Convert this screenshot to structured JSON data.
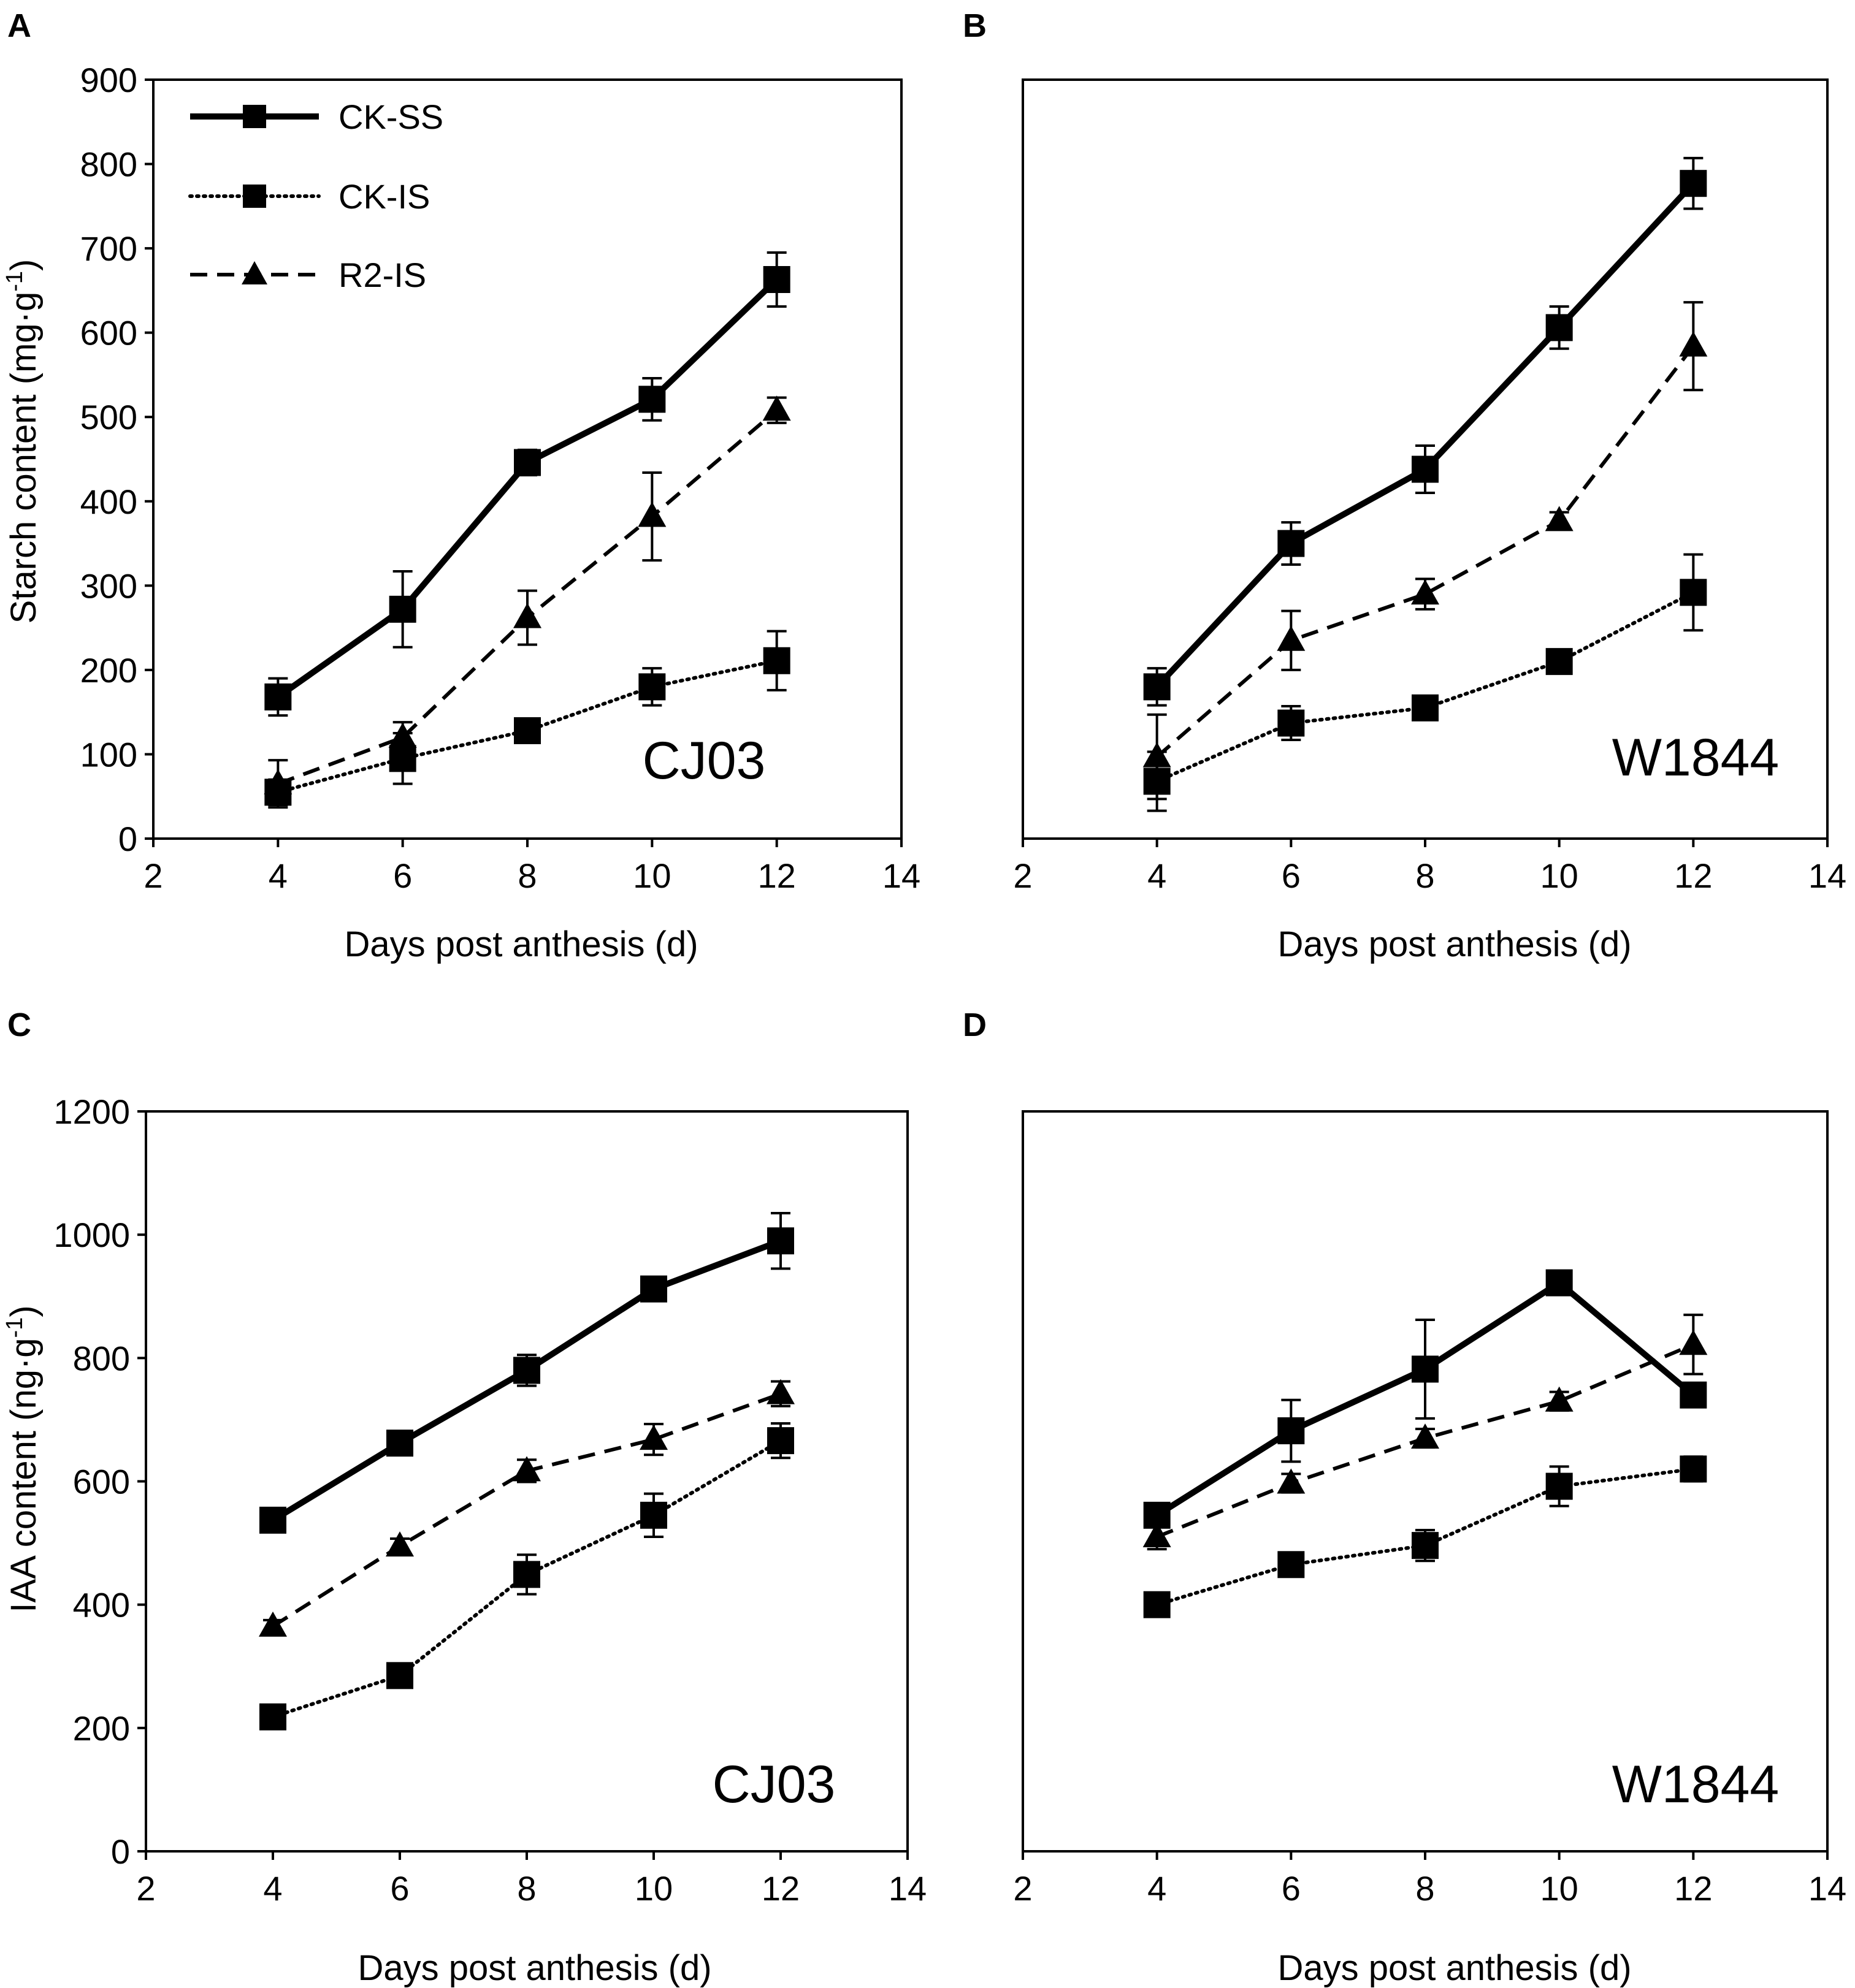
{
  "colors": {
    "line": "#000000",
    "background": "#ffffff"
  },
  "legend": [
    {
      "name": "CK-SS",
      "style": "solid",
      "marker": "square"
    },
    {
      "name": "CK-IS",
      "style": "dotted",
      "marker": "square"
    },
    {
      "name": "R2-IS",
      "style": "dashed",
      "marker": "triangle"
    }
  ],
  "chart_data": [
    {
      "panel": "A",
      "type": "line",
      "cultivar": "CJ03",
      "xlabel": "Days post anthesis (d)",
      "ylabel": "Starch content (mg·g",
      "ylabel_sup": "-1",
      "ylabel_close": ")",
      "xlim": [
        2,
        14
      ],
      "ylim": [
        0,
        900
      ],
      "xticks": [
        2,
        4,
        6,
        8,
        10,
        12,
        14
      ],
      "yticks": [
        0,
        100,
        200,
        300,
        400,
        500,
        600,
        700,
        800,
        900
      ],
      "show_yticks": true,
      "x": [
        4,
        6,
        8,
        10,
        12
      ],
      "series": [
        {
          "name": "CK-SS",
          "values": [
            168,
            272,
            446,
            521,
            663
          ],
          "errors": [
            22,
            45,
            15,
            25,
            32
          ]
        },
        {
          "name": "CK-IS",
          "values": [
            55,
            95,
            128,
            180,
            211
          ],
          "errors": [
            15,
            30,
            12,
            22,
            35
          ]
        },
        {
          "name": "R2-IS",
          "values": [
            65,
            120,
            262,
            382,
            508
          ],
          "errors": [
            28,
            18,
            32,
            52,
            15
          ]
        }
      ]
    },
    {
      "panel": "B",
      "type": "line",
      "cultivar": "W1844",
      "xlabel": "Days post anthesis (d)",
      "xlim": [
        2,
        14
      ],
      "ylim": [
        0,
        900
      ],
      "xticks": [
        2,
        4,
        6,
        8,
        10,
        12,
        14
      ],
      "show_yticks": false,
      "x": [
        4,
        6,
        8,
        10,
        12
      ],
      "series": [
        {
          "name": "CK-SS",
          "values": [
            180,
            350,
            438,
            606,
            777
          ],
          "errors": [
            22,
            25,
            28,
            25,
            30
          ]
        },
        {
          "name": "CK-IS",
          "values": [
            68,
            137,
            155,
            210,
            292
          ],
          "errors": [
            35,
            20,
            12,
            12,
            45
          ]
        },
        {
          "name": "R2-IS",
          "values": [
            97,
            235,
            290,
            377,
            584
          ],
          "errors": [
            50,
            35,
            18,
            10,
            52
          ]
        }
      ]
    },
    {
      "panel": "C",
      "type": "line",
      "cultivar": "CJ03",
      "xlabel": "Days post anthesis (d)",
      "ylabel": "IAA content (ng·g",
      "ylabel_sup": "-1",
      "ylabel_close": ")",
      "xlim": [
        2,
        14
      ],
      "ylim": [
        0,
        1200
      ],
      "xticks": [
        2,
        4,
        6,
        8,
        10,
        12,
        14
      ],
      "yticks": [
        0,
        200,
        400,
        600,
        800,
        1000,
        1200
      ],
      "show_yticks": true,
      "x": [
        4,
        6,
        8,
        10,
        12
      ],
      "series": [
        {
          "name": "CK-SS",
          "values": [
            537,
            662,
            780,
            912,
            990
          ],
          "errors": [
            12,
            15,
            25,
            18,
            45
          ]
        },
        {
          "name": "CK-IS",
          "values": [
            218,
            285,
            449,
            545,
            666
          ],
          "errors": [
            15,
            15,
            32,
            35,
            28
          ]
        },
        {
          "name": "R2-IS",
          "values": [
            365,
            495,
            617,
            668,
            742
          ],
          "errors": [
            10,
            12,
            18,
            25,
            20
          ]
        }
      ]
    },
    {
      "panel": "D",
      "type": "line",
      "cultivar": "W1844",
      "xlabel": "Days post anthesis (d)",
      "xlim": [
        2,
        14
      ],
      "ylim": [
        0,
        1200
      ],
      "xticks": [
        2,
        4,
        6,
        8,
        10,
        12,
        14
      ],
      "show_yticks": false,
      "x": [
        4,
        6,
        8,
        10,
        12
      ],
      "series": [
        {
          "name": "CK-SS",
          "values": [
            545,
            682,
            782,
            922,
            740
          ],
          "errors": [
            15,
            50,
            80,
            15,
            15
          ]
        },
        {
          "name": "CK-IS",
          "values": [
            400,
            465,
            496,
            592,
            620
          ],
          "errors": [
            12,
            15,
            25,
            32,
            20
          ]
        },
        {
          "name": "R2-IS",
          "values": [
            510,
            597,
            670,
            730,
            822
          ],
          "errors": [
            20,
            15,
            15,
            15,
            48
          ]
        }
      ]
    }
  ]
}
